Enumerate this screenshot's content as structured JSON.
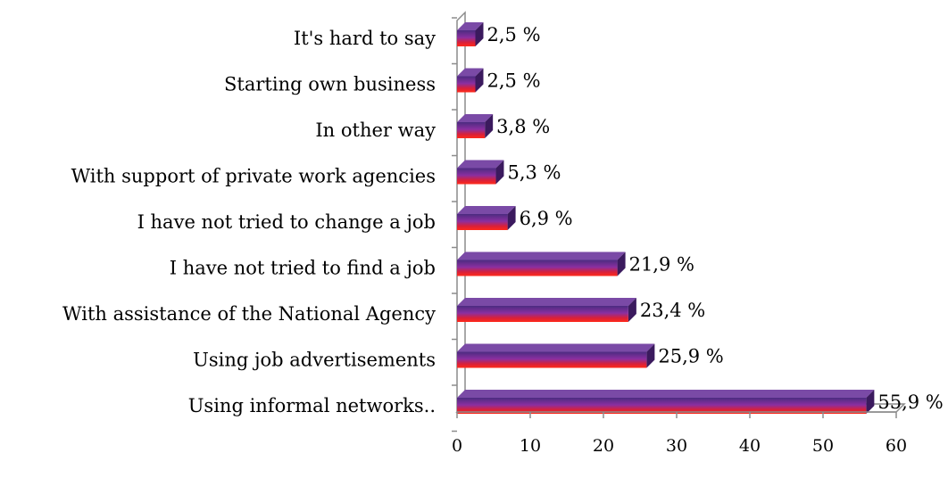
{
  "chart_data": {
    "type": "bar",
    "orientation": "horizontal",
    "categories": [
      "Using informal networks..",
      "Using job advertisements",
      "With assistance of the National Agency",
      "I have not tried to find a job",
      "I have not tried to change a job",
      "With support of private work agencies",
      "In other way",
      "Starting own business",
      "It's hard to say"
    ],
    "values": [
      55.9,
      25.9,
      23.4,
      21.9,
      6.9,
      5.3,
      3.8,
      2.5,
      2.5
    ],
    "value_labels": [
      "55,9 %",
      "25,9 %",
      "23,4 %",
      "21,9 %",
      "6,9 %",
      "5,3 %",
      "3,8 %",
      "2,5 %",
      "2,5 %"
    ],
    "xlim": [
      0,
      60
    ],
    "xticks": [
      0,
      10,
      20,
      30,
      40,
      50,
      60
    ],
    "title": "",
    "xlabel": "",
    "ylabel": "",
    "grid": false,
    "style": "3d",
    "colors": {
      "bar_top": "#5a2d82",
      "bar_mid": "#8a2a9a",
      "bar_bottom": "#ff1a1a",
      "bar_side": "#3b1a5e",
      "bar_cap": "#7a4aa6"
    }
  }
}
